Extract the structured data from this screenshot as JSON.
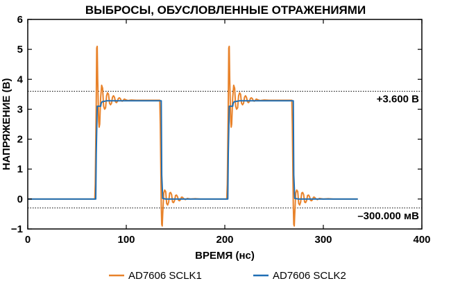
{
  "chart_data": {
    "type": "line",
    "title": "ВЫБРОСЫ, ОБУСЛОВЛЕННЫЕ ОТРАЖЕНИЯМИ",
    "xlabel": "ВРЕМЯ (нс)",
    "ylabel": "НАПРЯЖЕНИЕ (В)",
    "xlim": [
      0,
      400
    ],
    "ylim": [
      -1,
      6
    ],
    "xticks": [
      0,
      100,
      200,
      300,
      400
    ],
    "yticks": [
      -1,
      0,
      1,
      2,
      3,
      4,
      5,
      6
    ],
    "grid": false,
    "legend": "bottom",
    "reference_lines": [
      {
        "y": 3.6,
        "label": "+3.600 В"
      },
      {
        "y": -0.3,
        "label": "–300.000 мВ"
      }
    ],
    "series": [
      {
        "name": "AD7606 SCLK1",
        "color": "#e8822a",
        "x": [
          0,
          68,
          68.5,
          69.5,
          70,
          70.5,
          71,
          72,
          72.5,
          73,
          74,
          75,
          76,
          77,
          78,
          79,
          80,
          81,
          82,
          83,
          84,
          85,
          86,
          87,
          88,
          89,
          90,
          91,
          92,
          93,
          94,
          95,
          96,
          97,
          98,
          100,
          102,
          105,
          110,
          115,
          120,
          125,
          130,
          134,
          134.5,
          135.5,
          136,
          136.5,
          137,
          138,
          139,
          140,
          141,
          142,
          143,
          144,
          145,
          146,
          147,
          148,
          149,
          150,
          151,
          152,
          153,
          154,
          155,
          156,
          157,
          158,
          160,
          162,
          165,
          170,
          175,
          180,
          190,
          200,
          202,
          202.5,
          203.5,
          204,
          204.5,
          205,
          206,
          206.5,
          207,
          208,
          209,
          210,
          211,
          212,
          213,
          214,
          215,
          216,
          217,
          218,
          219,
          220,
          221,
          222,
          223,
          224,
          225,
          226,
          227,
          228,
          229,
          230,
          231,
          232,
          234,
          236,
          240,
          245,
          250,
          255,
          260,
          264,
          268,
          268.5,
          269.5,
          270,
          270.5,
          271,
          272,
          273,
          274,
          275,
          276,
          277,
          278,
          279,
          280,
          281,
          282,
          283,
          284,
          285,
          286,
          287,
          288,
          289,
          290,
          291,
          292,
          294,
          296,
          300,
          305,
          310,
          315,
          320,
          330,
          335
        ],
        "values": [
          0,
          0,
          0.5,
          3.2,
          5.05,
          5.1,
          4.0,
          2.6,
          2.4,
          2.5,
          3.4,
          3.8,
          3.7,
          3.1,
          3.0,
          3.05,
          3.45,
          3.55,
          3.5,
          3.2,
          3.15,
          3.2,
          3.4,
          3.45,
          3.4,
          3.25,
          3.22,
          3.26,
          3.36,
          3.38,
          3.35,
          3.28,
          3.27,
          3.3,
          3.34,
          3.31,
          3.29,
          3.31,
          3.3,
          3.3,
          3.3,
          3.3,
          3.3,
          3.3,
          2.5,
          -0.2,
          -0.85,
          -0.9,
          -0.5,
          0.2,
          0.3,
          0.25,
          -0.15,
          -0.2,
          -0.1,
          0.2,
          0.22,
          0.15,
          -0.1,
          -0.12,
          -0.05,
          0.12,
          0.13,
          0.08,
          -0.04,
          -0.06,
          -0.02,
          0.06,
          0.06,
          0.02,
          -0.02,
          0.02,
          0.0,
          0.01,
          0.0,
          0.0,
          0.0,
          0.0,
          0.0,
          0.5,
          3.2,
          5.05,
          5.1,
          4.0,
          2.6,
          2.4,
          2.5,
          3.4,
          3.8,
          3.7,
          3.1,
          3.0,
          3.05,
          3.45,
          3.55,
          3.5,
          3.2,
          3.15,
          3.2,
          3.4,
          3.45,
          3.4,
          3.25,
          3.22,
          3.26,
          3.36,
          3.38,
          3.35,
          3.28,
          3.27,
          3.3,
          3.34,
          3.31,
          3.29,
          3.31,
          3.3,
          3.3,
          3.3,
          3.3,
          3.3,
          3.3,
          2.5,
          -0.2,
          -0.85,
          -0.9,
          -0.5,
          0.2,
          0.3,
          0.25,
          -0.15,
          -0.2,
          -0.1,
          0.2,
          0.22,
          0.15,
          -0.1,
          -0.12,
          -0.05,
          0.12,
          0.13,
          0.08,
          -0.04,
          -0.06,
          -0.02,
          0.06,
          0.06,
          0.02,
          -0.02,
          0.02,
          0.0,
          0.01,
          0.0,
          0.0,
          0.0,
          0.0,
          0.0
        ]
      },
      {
        "name": "AD7606 SCLK2",
        "color": "#1f6fb5",
        "x": [
          0,
          69,
          69.5,
          70.5,
          74,
          74.5,
          75.5,
          80,
          85,
          90,
          95,
          100,
          110,
          120,
          130,
          135.5,
          136,
          137,
          140,
          150,
          160,
          170,
          180,
          190,
          200,
          203,
          203.5,
          204.5,
          208,
          208.5,
          209.5,
          215,
          220,
          230,
          240,
          250,
          260,
          269.5,
          270,
          271,
          275,
          285,
          300,
          320,
          335
        ],
        "values": [
          0,
          0,
          1.5,
          3.1,
          3.1,
          3.2,
          3.25,
          3.28,
          3.28,
          3.28,
          3.28,
          3.28,
          3.28,
          3.28,
          3.28,
          3.28,
          0.8,
          0.02,
          0.0,
          0.0,
          0.0,
          0.0,
          0.0,
          0.0,
          0.0,
          0.0,
          1.5,
          3.1,
          3.1,
          3.2,
          3.25,
          3.28,
          3.28,
          3.28,
          3.28,
          3.28,
          3.28,
          3.28,
          0.8,
          0.02,
          0.0,
          0.0,
          0.0,
          0.0,
          0.0
        ]
      }
    ]
  }
}
